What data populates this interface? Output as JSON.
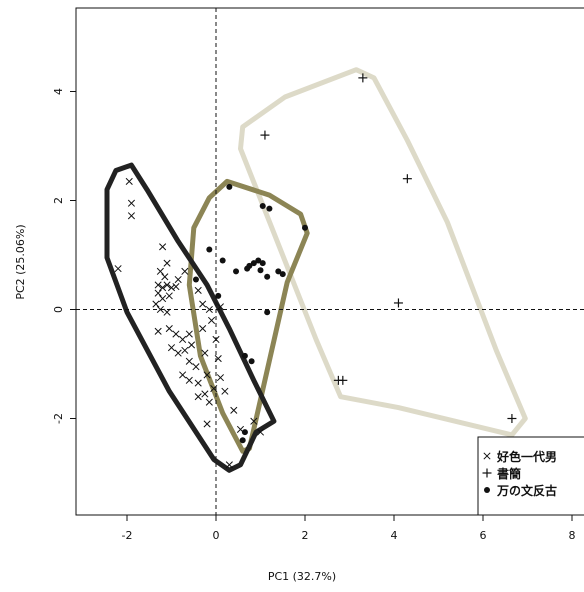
{
  "chart_data": {
    "type": "scatter",
    "xlabel": "PC1 (32.7%)",
    "ylabel": "PC2 (25.06%)",
    "xlim": [
      -3.2,
      8.5
    ],
    "ylim": [
      -3.8,
      5.5
    ],
    "x_ticks": [
      -2,
      0,
      2,
      4,
      6,
      8
    ],
    "y_ticks": [
      -2,
      0,
      2,
      4
    ],
    "reference_lines": {
      "x": 0,
      "y": 0,
      "style": "dashed"
    },
    "grid": false,
    "legend_position": "bottom-right",
    "series": [
      {
        "name": "好色一代男",
        "marker": "x",
        "points": [
          [
            -2.2,
            0.75
          ],
          [
            -1.95,
            2.35
          ],
          [
            -1.9,
            1.95
          ],
          [
            -1.9,
            1.72
          ],
          [
            -1.2,
            1.15
          ],
          [
            -1.1,
            0.85
          ],
          [
            -1.25,
            0.7
          ],
          [
            -1.15,
            0.6
          ],
          [
            -1.3,
            0.45
          ],
          [
            -1.2,
            0.4
          ],
          [
            -1.1,
            0.45
          ],
          [
            -1.0,
            0.4
          ],
          [
            -0.9,
            0.42
          ],
          [
            -1.3,
            0.3
          ],
          [
            -1.2,
            0.2
          ],
          [
            -1.05,
            0.25
          ],
          [
            -0.85,
            0.55
          ],
          [
            -0.7,
            0.7
          ],
          [
            -1.35,
            0.1
          ],
          [
            -1.25,
            0.0
          ],
          [
            -1.1,
            -0.05
          ],
          [
            -0.4,
            0.35
          ],
          [
            -1.3,
            -0.4
          ],
          [
            -1.05,
            -0.35
          ],
          [
            -0.9,
            -0.45
          ],
          [
            -0.75,
            -0.55
          ],
          [
            -0.6,
            -0.45
          ],
          [
            -0.55,
            -0.65
          ],
          [
            -1.0,
            -0.7
          ],
          [
            -0.85,
            -0.8
          ],
          [
            -0.7,
            -0.75
          ],
          [
            -0.3,
            0.1
          ],
          [
            -0.15,
            0.0
          ],
          [
            0.1,
            0.05
          ],
          [
            -0.1,
            -0.2
          ],
          [
            -0.3,
            -0.35
          ],
          [
            0.0,
            -0.55
          ],
          [
            -0.6,
            -0.95
          ],
          [
            -0.45,
            -1.05
          ],
          [
            -0.25,
            -0.8
          ],
          [
            0.05,
            -0.9
          ],
          [
            -0.75,
            -1.2
          ],
          [
            -0.6,
            -1.3
          ],
          [
            -0.4,
            -1.35
          ],
          [
            -0.2,
            -1.2
          ],
          [
            0.1,
            -1.25
          ],
          [
            -0.4,
            -1.6
          ],
          [
            -0.25,
            -1.55
          ],
          [
            -0.15,
            -1.7
          ],
          [
            -0.05,
            -1.45
          ],
          [
            0.2,
            -1.5
          ],
          [
            -0.2,
            -2.1
          ],
          [
            0.4,
            -1.85
          ],
          [
            0.85,
            -2.05
          ],
          [
            0.55,
            -2.2
          ],
          [
            1.0,
            -2.25
          ],
          [
            0.3,
            -2.85
          ]
        ]
      },
      {
        "name": "書簡",
        "marker": "plus",
        "points": [
          [
            3.3,
            4.25
          ],
          [
            1.1,
            3.2
          ],
          [
            4.3,
            2.4
          ],
          [
            4.1,
            0.12
          ],
          [
            2.75,
            -1.3
          ],
          [
            2.85,
            -1.3
          ],
          [
            6.65,
            -2.0
          ]
        ]
      },
      {
        "name": "万の文反古",
        "marker": "dot",
        "points": [
          [
            0.3,
            2.25
          ],
          [
            1.05,
            1.9
          ],
          [
            1.2,
            1.85
          ],
          [
            2.0,
            1.5
          ],
          [
            -0.15,
            1.1
          ],
          [
            0.15,
            0.9
          ],
          [
            0.95,
            0.9
          ],
          [
            0.85,
            0.85
          ],
          [
            1.05,
            0.85
          ],
          [
            0.75,
            0.8
          ],
          [
            0.7,
            0.75
          ],
          [
            1.0,
            0.72
          ],
          [
            0.45,
            0.7
          ],
          [
            1.4,
            0.7
          ],
          [
            1.5,
            0.65
          ],
          [
            1.15,
            0.6
          ],
          [
            -0.45,
            0.55
          ],
          [
            0.05,
            0.25
          ],
          [
            1.15,
            -0.05
          ],
          [
            0.65,
            -0.85
          ],
          [
            0.8,
            -0.95
          ],
          [
            0.65,
            -2.25
          ],
          [
            0.6,
            -2.4
          ]
        ]
      }
    ],
    "hulls": [
      {
        "series": "好色一代男",
        "color": "#222222",
        "points": [
          [
            -2.25,
            2.55
          ],
          [
            -1.9,
            2.65
          ],
          [
            -1.55,
            2.2
          ],
          [
            -0.85,
            1.25
          ],
          [
            -0.2,
            0.45
          ],
          [
            0.3,
            -0.35
          ],
          [
            0.85,
            -1.3
          ],
          [
            1.3,
            -2.05
          ],
          [
            0.9,
            -2.25
          ],
          [
            0.55,
            -2.85
          ],
          [
            0.3,
            -2.95
          ],
          [
            -0.05,
            -2.75
          ],
          [
            -1.05,
            -1.5
          ],
          [
            -2.0,
            -0.05
          ],
          [
            -2.45,
            0.95
          ],
          [
            -2.45,
            2.2
          ]
        ]
      },
      {
        "series": "万の文反古",
        "color": "#8c8555",
        "points": [
          [
            -0.15,
            2.05
          ],
          [
            0.25,
            2.35
          ],
          [
            1.2,
            2.1
          ],
          [
            1.9,
            1.75
          ],
          [
            2.05,
            1.4
          ],
          [
            1.6,
            0.5
          ],
          [
            0.75,
            -2.55
          ],
          [
            0.6,
            -2.6
          ],
          [
            0.15,
            -1.9
          ],
          [
            -0.35,
            -0.85
          ],
          [
            -0.6,
            0.45
          ],
          [
            -0.5,
            1.5
          ]
        ]
      },
      {
        "series": "書簡",
        "color": "#dddac8",
        "points": [
          [
            0.6,
            3.35
          ],
          [
            1.55,
            3.9
          ],
          [
            3.15,
            4.4
          ],
          [
            3.55,
            4.25
          ],
          [
            4.3,
            3.1
          ],
          [
            5.2,
            1.6
          ],
          [
            6.3,
            -0.75
          ],
          [
            6.95,
            -2.0
          ],
          [
            6.65,
            -2.3
          ],
          [
            4.1,
            -1.8
          ],
          [
            2.8,
            -1.6
          ],
          [
            2.25,
            -0.55
          ],
          [
            0.55,
            2.95
          ]
        ]
      }
    ]
  }
}
